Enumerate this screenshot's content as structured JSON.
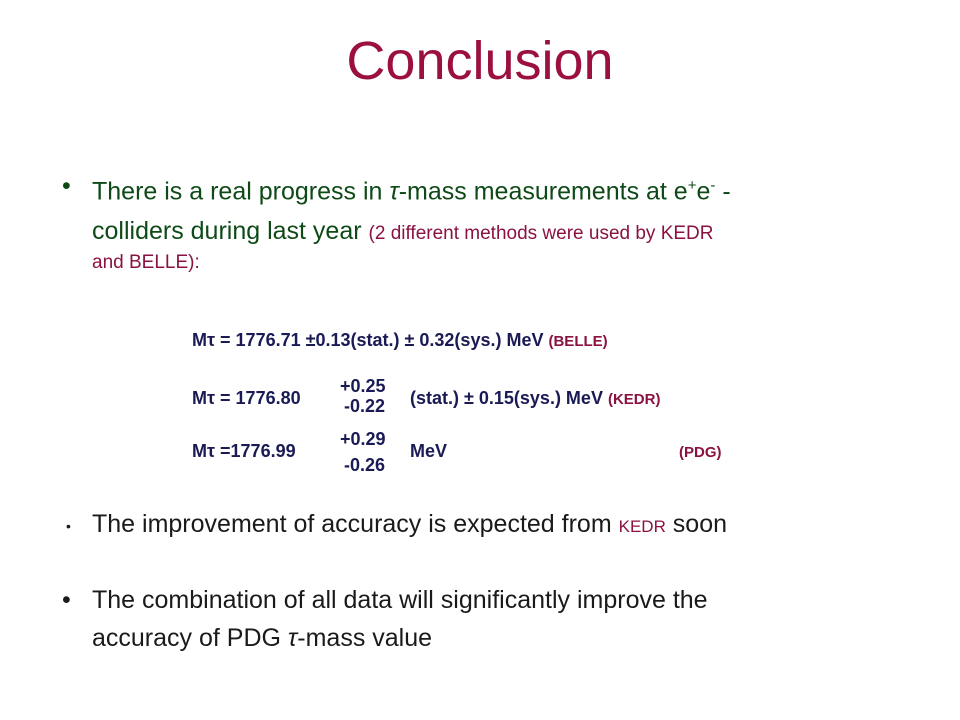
{
  "title": "Conclusion",
  "bullets": [
    {
      "line1_a": "There is a real  progress in ",
      "tau": "τ",
      "line1_b": "-mass measurements  at e",
      "sup1": "+",
      "e2": "e",
      "sup2": "-",
      "line1_c": " -",
      "line2": "colliders during last year ",
      "line2_note": "(2 different methods were used by KEDR",
      "line3_note": "and  BELLE):"
    },
    {
      "text_a": "The improvement of  accuracy is expected  from ",
      "kedr": "KEDR",
      "text_b": "  soon"
    },
    {
      "line1": "The combination of all data will significantly improve the",
      "line2_a": "accuracy   of PDG ",
      "tau": "τ",
      "line2_b": "-mass value"
    }
  ],
  "masses": [
    {
      "label": "Mτ = 1776.71 ±0.13(stat.)  ± 0.32(sys.) MeV",
      "source": "(BELLE)"
    },
    {
      "prefix": "Mτ = 1776.80",
      "err_up": "+0.25",
      "err_down": "-0.22",
      "suffix": "(stat.) ± 0.15(sys.) MeV",
      "source": "(KEDR)"
    },
    {
      "prefix": "Mτ  =1776.99",
      "err_up": "+0.29",
      "err_down": "-0.26",
      "suffix": "MeV",
      "source": "(PDG)"
    }
  ],
  "colors": {
    "title": "#9b1040",
    "bullet_text": "#0e4a17",
    "note_text": "#8a1242",
    "mass_text": "#1a1a55"
  }
}
